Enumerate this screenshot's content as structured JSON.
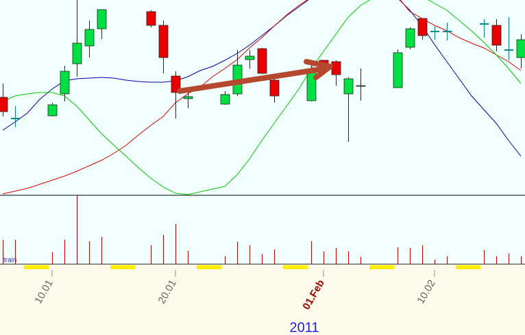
{
  "chart_data": {
    "type": "candlestick",
    "xlabel": "2011",
    "volume_label": "train",
    "categories": [
      null,
      null,
      null,
      null,
      "10.01",
      null,
      null,
      null,
      null,
      null,
      null,
      null,
      null,
      null,
      "20.01",
      null,
      null,
      null,
      null,
      null,
      null,
      null,
      null,
      null,
      null,
      null,
      "01.Feb",
      null,
      null,
      null,
      null,
      null,
      null,
      null,
      null,
      "10.02",
      null,
      null,
      null,
      null,
      null,
      null,
      null
    ],
    "open": [
      143,
      112,
      null,
      null,
      116,
      148,
      192,
      218,
      243,
      null,
      null,
      null,
      268,
      248,
      174,
      141,
      null,
      null,
      133,
      148,
      198,
      214,
      168,
      null,
      null,
      138,
      197,
      195,
      148,
      159,
      null,
      null,
      157,
      216,
      258,
      239,
      239,
      null,
      null,
      250,
      248,
      212,
      201
    ],
    "high": [
      163,
      130,
      null,
      null,
      135,
      189,
      285,
      255,
      271,
      null,
      null,
      null,
      270,
      255,
      181,
      150,
      null,
      null,
      152,
      212,
      212,
      215,
      177,
      null,
      null,
      190,
      197,
      197,
      172,
      185,
      null,
      null,
      213,
      245,
      258,
      247,
      252,
      null,
      null,
      257,
      257,
      260,
      235
    ],
    "low": [
      115,
      100,
      null,
      null,
      115,
      137,
      173,
      201,
      228,
      null,
      null,
      null,
      245,
      178,
      112,
      127,
      null,
      null,
      132,
      145,
      185,
      177,
      135,
      null,
      null,
      137,
      180,
      160,
      78,
      138,
      null,
      null,
      157,
      213,
      227,
      227,
      226,
      null,
      null,
      230,
      210,
      197,
      185
    ],
    "close": [
      122,
      112,
      null,
      null,
      132,
      181,
      222,
      242,
      271,
      null,
      null,
      null,
      248,
      201,
      150,
      144,
      null,
      null,
      147,
      190,
      203,
      178,
      145,
      null,
      null,
      180,
      182,
      176,
      170,
      160,
      null,
      null,
      208,
      243,
      233,
      239,
      239,
      null,
      null,
      250,
      219,
      212,
      227
    ],
    "volume": [
      35,
      35,
      null,
      null,
      17,
      35,
      100,
      33,
      39,
      null,
      null,
      null,
      27,
      42,
      58,
      19,
      null,
      null,
      11,
      32,
      27,
      14,
      21,
      null,
      null,
      33,
      18,
      23,
      18,
      10,
      null,
      null,
      24,
      23,
      27,
      6,
      11,
      null,
      null,
      20,
      11,
      15,
      11
    ],
    "up_color": "#00e040",
    "down_color": "#e80000",
    "doji_color": "#008888",
    "volume_color": "#cc0000",
    "ylim": [
      0,
      285
    ],
    "volume_ylim": [
      0,
      100
    ],
    "lines": [
      {
        "color": "#0000aa",
        "values": [
          95,
          107,
          120,
          140,
          155,
          167,
          170,
          171,
          172,
          171,
          168,
          166,
          165,
          165,
          167,
          173,
          182,
          188,
          197,
          207,
          219,
          233,
          247,
          262,
          275,
          288,
          null,
          null,
          null,
          null,
          null,
          null,
          288,
          270,
          247,
          220,
          195,
          170,
          145,
          125,
          105,
          80,
          57
        ]
      },
      {
        "color": "#dd0000",
        "values": [
          2,
          6,
          10,
          16,
          22,
          28,
          35,
          43,
          51,
          61,
          73,
          88,
          102,
          115,
          135,
          148,
          158,
          173,
          185,
          198,
          215,
          230,
          247,
          263,
          277,
          289,
          null,
          null,
          null,
          null,
          null,
          null,
          290,
          268,
          258,
          248,
          240,
          230,
          222,
          215,
          205,
          195,
          182
        ]
      },
      {
        "color": "#00cc00",
        "values": [
          137,
          145,
          148,
          150,
          150,
          145,
          130,
          110,
          90,
          73,
          57,
          40,
          25,
          12,
          3,
          1,
          5,
          9,
          13,
          30,
          53,
          80,
          105,
          130,
          155,
          185,
          210,
          235,
          260,
          277,
          288,
          null,
          null,
          null,
          290,
          280,
          270,
          255,
          240,
          223,
          205,
          185,
          163
        ]
      }
    ]
  }
}
